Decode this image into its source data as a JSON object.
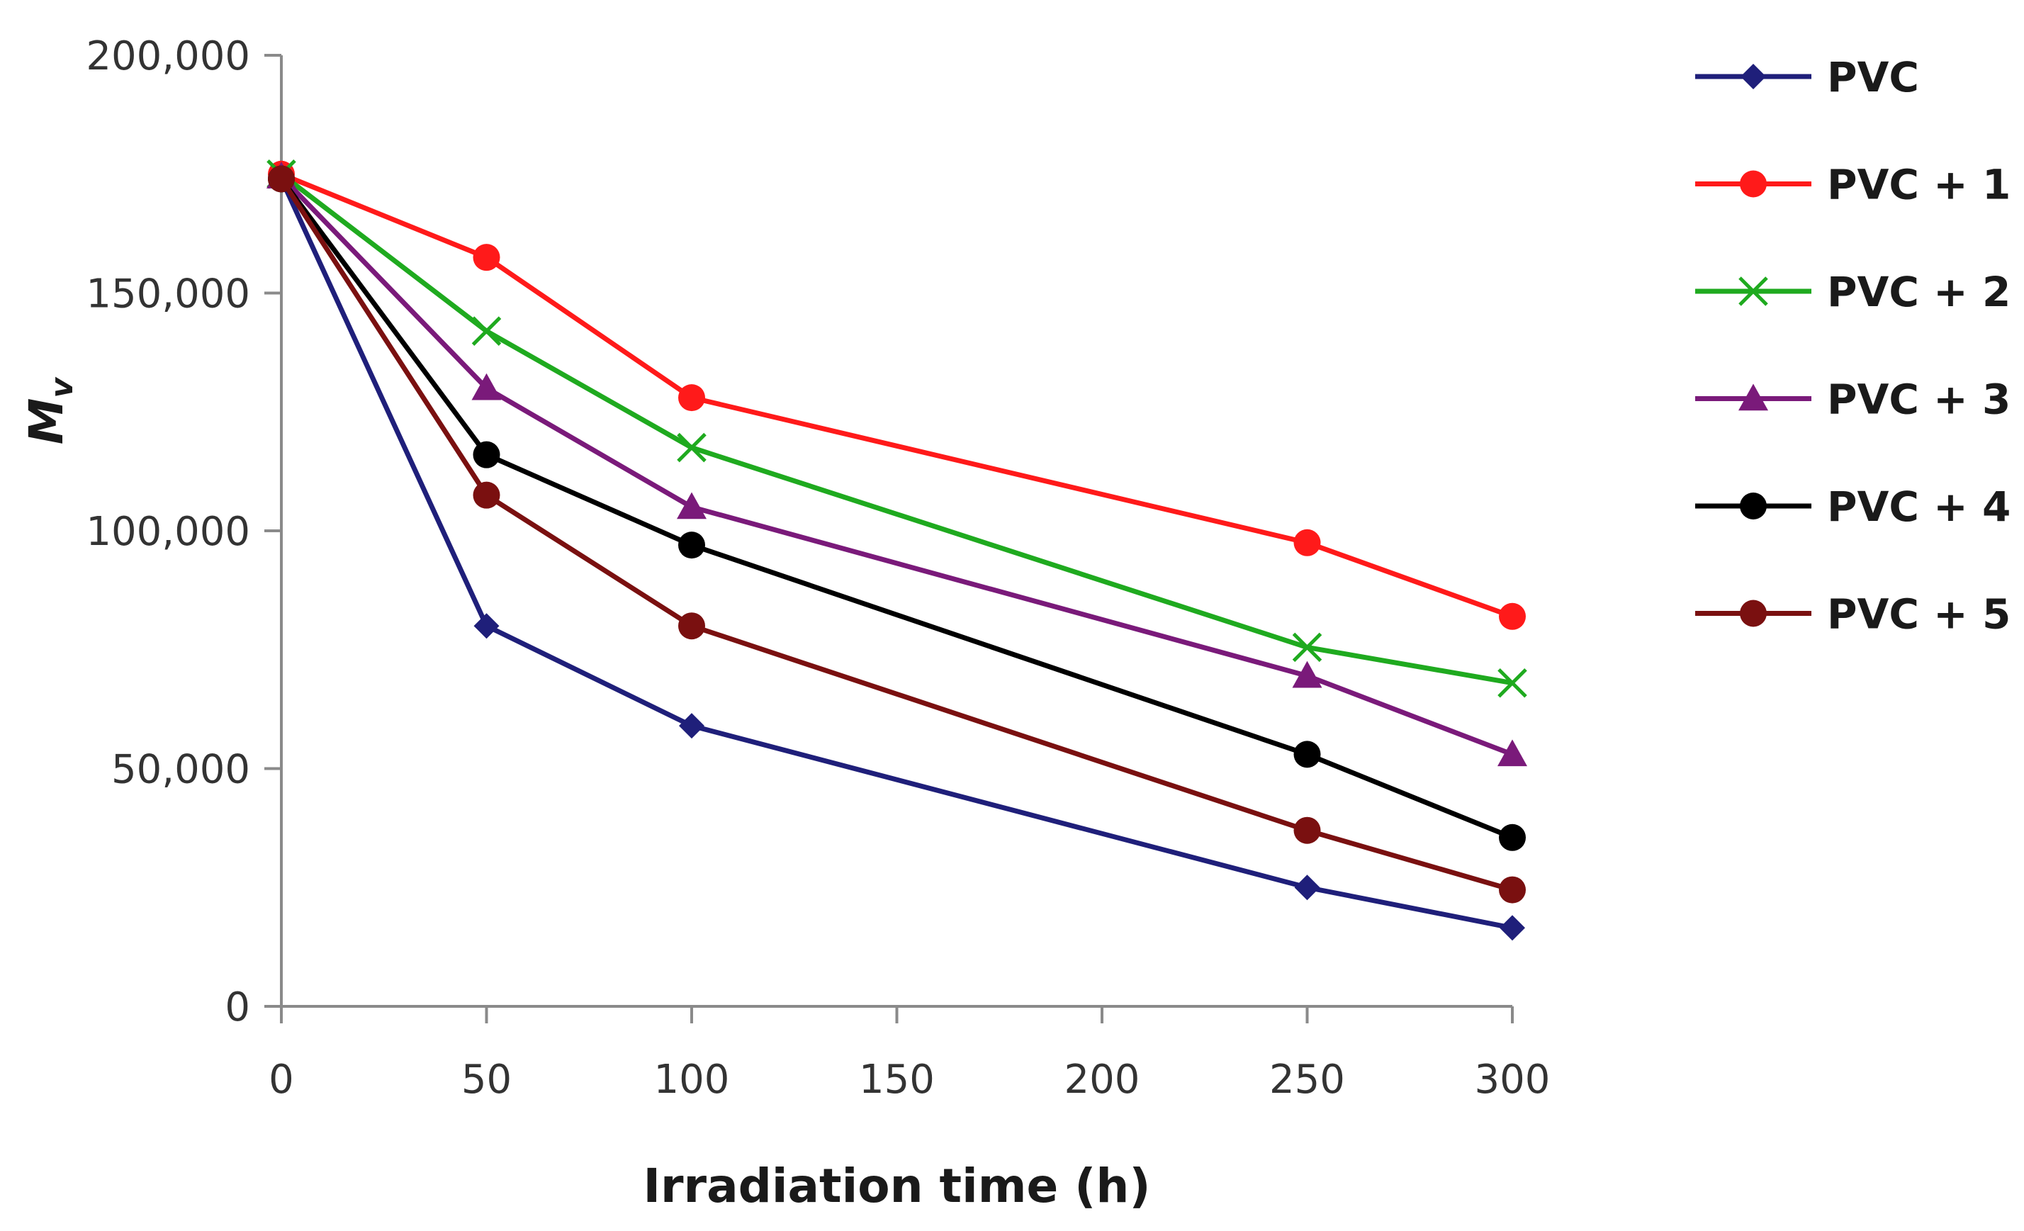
{
  "chart_data": {
    "type": "line",
    "xlabel": "Irradiation time (h)",
    "ylabel_main": "M",
    "ylabel_sub": "v",
    "x": [
      0,
      50,
      100,
      250,
      300
    ],
    "xlim": [
      0,
      300
    ],
    "ylim": [
      0,
      200000
    ],
    "x_ticks": [
      0,
      50,
      100,
      150,
      200,
      250,
      300
    ],
    "x_tick_labels": [
      "0",
      "50",
      "100",
      "150",
      "200",
      "250",
      "300"
    ],
    "y_ticks": [
      0,
      50000,
      100000,
      150000,
      200000
    ],
    "y_tick_labels": [
      "0",
      "50,000",
      "100,000",
      "150,000",
      "200,000"
    ],
    "grid": false,
    "legend_position": "right",
    "series": [
      {
        "name": "PVC",
        "color": "#1f1f7a",
        "marker": "diamond",
        "values": [
          174000,
          80000,
          59000,
          25000,
          16500
        ]
      },
      {
        "name": "PVC + 1",
        "color": "#ff1a1a",
        "marker": "circle",
        "values": [
          175000,
          157500,
          128000,
          97500,
          82000
        ]
      },
      {
        "name": "PVC + 2",
        "color": "#1faa1f",
        "marker": "x",
        "values": [
          175000,
          142000,
          117500,
          75500,
          68000
        ]
      },
      {
        "name": "PVC + 3",
        "color": "#7a1a7a",
        "marker": "triangle",
        "values": [
          174500,
          130000,
          105000,
          69500,
          53000
        ]
      },
      {
        "name": "PVC + 4",
        "color": "#000000",
        "marker": "circle",
        "values": [
          174000,
          116000,
          97000,
          53000,
          35500
        ]
      },
      {
        "name": "PVC + 5",
        "color": "#7a1010",
        "marker": "circle",
        "values": [
          174000,
          107500,
          80000,
          37000,
          24500
        ]
      }
    ]
  }
}
